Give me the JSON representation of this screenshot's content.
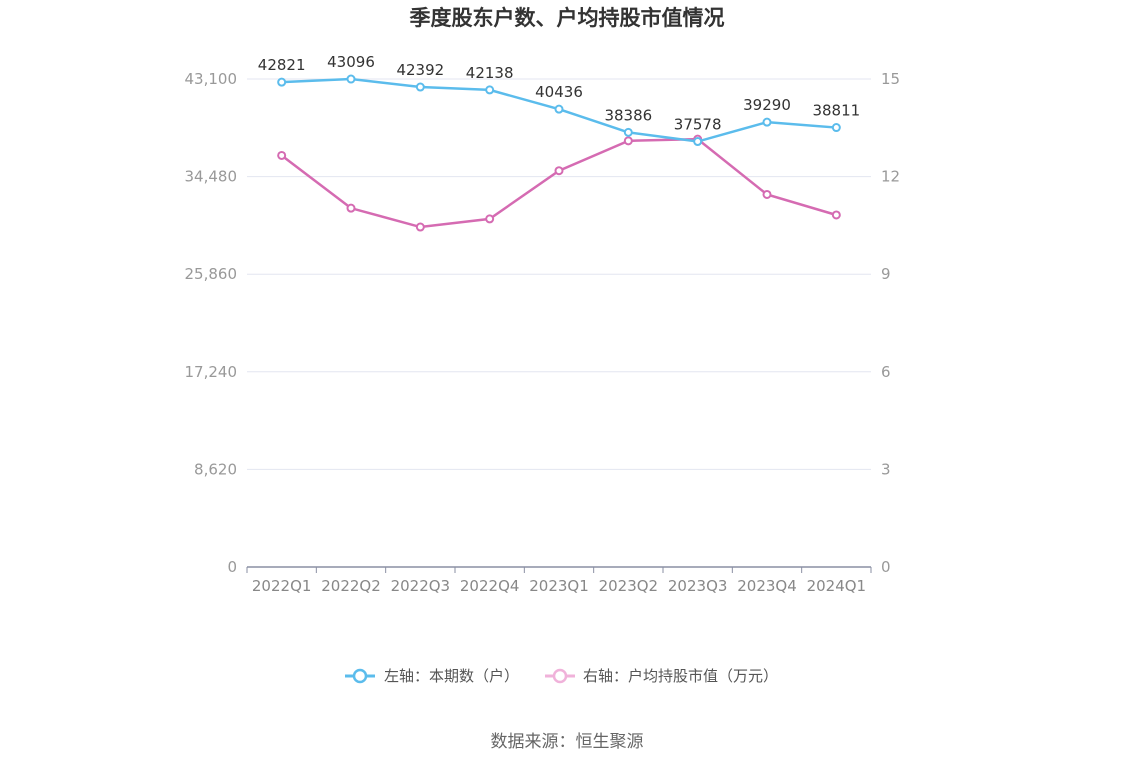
{
  "chart_data": {
    "type": "line",
    "title": "季度股东户数、户均持股市值情况",
    "categories": [
      "2022Q1",
      "2022Q2",
      "2022Q3",
      "2022Q4",
      "2023Q1",
      "2023Q2",
      "2023Q3",
      "2023Q4",
      "2024Q1"
    ],
    "left_axis": {
      "ticks": [
        "0",
        "8,620",
        "17,240",
        "25,860",
        "34,480",
        "43,100"
      ],
      "ylim": [
        0,
        43100
      ]
    },
    "right_axis": {
      "ticks": [
        "0",
        "3",
        "6",
        "9",
        "12",
        "15"
      ],
      "ylim": [
        0,
        15
      ]
    },
    "series": [
      {
        "name": "左轴：本期数（户）",
        "axis": "left",
        "color": "#5bbcec",
        "values": [
          42821,
          43096,
          42392,
          42138,
          40436,
          38386,
          37578,
          39290,
          38811
        ],
        "labels": [
          "42821",
          "43096",
          "42392",
          "42138",
          "40436",
          "38386",
          "37578",
          "39290",
          "38811"
        ]
      },
      {
        "name": "右轴：户均持股市值（万元）",
        "axis": "right",
        "color": "#d56bb2",
        "values": [
          12.65,
          11.03,
          10.45,
          10.7,
          12.18,
          13.1,
          13.15,
          11.45,
          10.82
        ]
      }
    ],
    "grid": true,
    "legend_position": "bottom"
  },
  "source": "数据来源：恒生聚源"
}
